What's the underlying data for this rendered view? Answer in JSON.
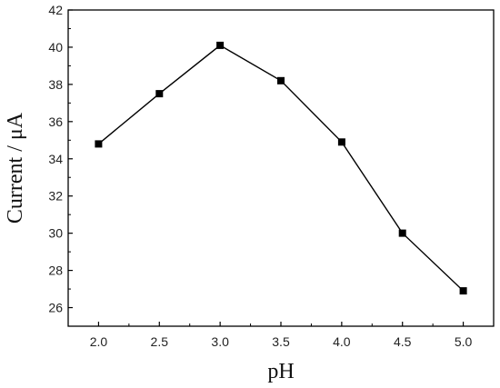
{
  "chart_data": {
    "type": "line",
    "xlabel": "pH",
    "ylabel": "Current / μA",
    "xlim": [
      1.75,
      5.25
    ],
    "ylim": [
      25,
      42
    ],
    "xticks": [
      "2.0",
      "2.5",
      "3.0",
      "3.5",
      "4.0",
      "4.5",
      "5.0"
    ],
    "yticks": [
      "26",
      "28",
      "30",
      "32",
      "34",
      "36",
      "38",
      "40",
      "42"
    ],
    "grid": false,
    "marker": "square",
    "color": "#000000",
    "series": [
      {
        "x": [
          2.0,
          2.5,
          3.0,
          3.5,
          4.0,
          4.5,
          5.0
        ],
        "y": [
          34.8,
          37.5,
          40.1,
          38.2,
          34.9,
          30.0,
          26.9
        ]
      }
    ]
  }
}
